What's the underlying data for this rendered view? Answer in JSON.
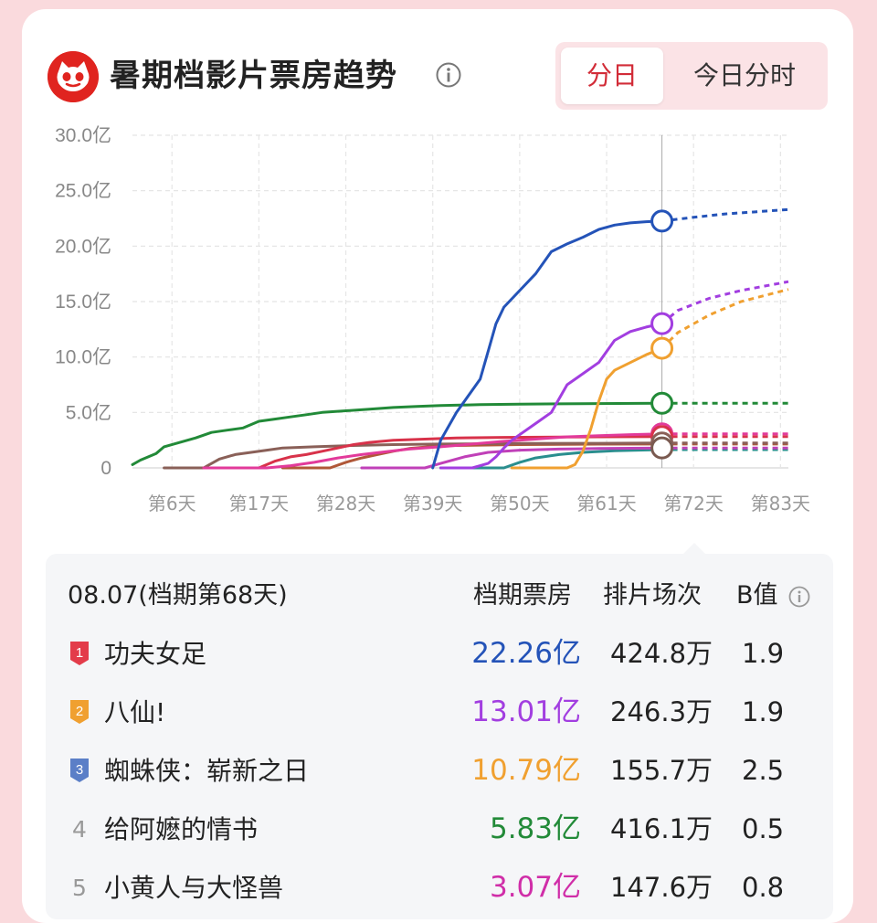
{
  "header": {
    "title": "暑期档影片票房趋势",
    "toggle": [
      "分日",
      "今日分时"
    ],
    "active_toggle": "分日"
  },
  "chart_data": {
    "type": "line",
    "x_unit": "天",
    "x_tick_labels": [
      "第6天",
      "第17天",
      "第28天",
      "第39天",
      "第50天",
      "第61天",
      "第72天",
      "第83天"
    ],
    "x_ticks": [
      6,
      17,
      28,
      39,
      50,
      61,
      72,
      83
    ],
    "y_tick_labels": [
      "0",
      "5.0亿",
      "10.0亿",
      "15.0亿",
      "20.0亿",
      "25.0亿",
      "30.0亿"
    ],
    "ylim": [
      0,
      30
    ],
    "xlim": [
      1,
      84
    ],
    "current_day": 68,
    "grid": true,
    "series": [
      {
        "color": "#2453b8",
        "actual": [
          [
            39,
            0
          ],
          [
            40,
            2.5
          ],
          [
            42,
            5
          ],
          [
            45,
            8
          ],
          [
            46,
            10.5
          ],
          [
            47,
            13
          ],
          [
            48,
            14.5
          ],
          [
            50,
            16
          ],
          [
            52,
            17.5
          ],
          [
            54,
            19.5
          ],
          [
            56,
            20.2
          ],
          [
            58,
            20.8
          ],
          [
            60,
            21.5
          ],
          [
            62,
            21.9
          ],
          [
            64,
            22.1
          ],
          [
            66,
            22.2
          ],
          [
            68,
            22.26
          ]
        ],
        "projected": [
          [
            68,
            22.26
          ],
          [
            72,
            22.6
          ],
          [
            76,
            22.9
          ],
          [
            80,
            23.1
          ],
          [
            84,
            23.3
          ]
        ]
      },
      {
        "color": "#a23ee0",
        "actual": [
          [
            40,
            0
          ],
          [
            44,
            0
          ],
          [
            46,
            0.4
          ],
          [
            47,
            1
          ],
          [
            48,
            1.8
          ],
          [
            49,
            2.5
          ],
          [
            52,
            4
          ],
          [
            54,
            5
          ],
          [
            56,
            7.5
          ],
          [
            58,
            8.5
          ],
          [
            60,
            9.5
          ],
          [
            62,
            11.5
          ],
          [
            64,
            12.3
          ],
          [
            66,
            12.7
          ],
          [
            68,
            13.01
          ]
        ],
        "projected": [
          [
            68,
            13.01
          ],
          [
            70,
            14.2
          ],
          [
            74,
            15.3
          ],
          [
            78,
            16
          ],
          [
            84,
            16.8
          ]
        ]
      },
      {
        "color": "#f0a030",
        "actual": [
          [
            49,
            0
          ],
          [
            56,
            0
          ],
          [
            57,
            0.3
          ],
          [
            58,
            1.5
          ],
          [
            59,
            3.5
          ],
          [
            60,
            6
          ],
          [
            61,
            8
          ],
          [
            62,
            8.8
          ],
          [
            64,
            9.5
          ],
          [
            66,
            10.2
          ],
          [
            68,
            10.79
          ]
        ],
        "projected": [
          [
            68,
            10.79
          ],
          [
            70,
            12.2
          ],
          [
            74,
            13.8
          ],
          [
            78,
            15
          ],
          [
            84,
            16.1
          ]
        ]
      },
      {
        "color": "#228a38",
        "actual": [
          [
            1,
            0.3
          ],
          [
            2,
            0.7
          ],
          [
            4,
            1.3
          ],
          [
            5,
            1.9
          ],
          [
            7,
            2.3
          ],
          [
            9,
            2.7
          ],
          [
            11,
            3.2
          ],
          [
            13,
            3.4
          ],
          [
            15,
            3.6
          ],
          [
            17,
            4.2
          ],
          [
            19,
            4.4
          ],
          [
            21,
            4.6
          ],
          [
            23,
            4.8
          ],
          [
            25,
            5.0
          ],
          [
            28,
            5.15
          ],
          [
            31,
            5.3
          ],
          [
            34,
            5.45
          ],
          [
            37,
            5.55
          ],
          [
            40,
            5.62
          ],
          [
            45,
            5.7
          ],
          [
            50,
            5.75
          ],
          [
            55,
            5.78
          ],
          [
            60,
            5.8
          ],
          [
            65,
            5.82
          ],
          [
            68,
            5.83
          ]
        ],
        "projected": [
          [
            68,
            5.83
          ],
          [
            84,
            5.83
          ]
        ]
      },
      {
        "color": "#e23a9a",
        "actual": [
          [
            10,
            0
          ],
          [
            18,
            0
          ],
          [
            21,
            0.2
          ],
          [
            24,
            0.5
          ],
          [
            27,
            0.9
          ],
          [
            30,
            1.2
          ],
          [
            33,
            1.45
          ],
          [
            36,
            1.7
          ],
          [
            40,
            1.9
          ],
          [
            44,
            2.15
          ],
          [
            48,
            2.4
          ],
          [
            52,
            2.6
          ],
          [
            56,
            2.8
          ],
          [
            60,
            2.9
          ],
          [
            64,
            3.0
          ],
          [
            68,
            3.07
          ]
        ],
        "projected": [
          [
            68,
            3.07
          ],
          [
            84,
            3.07
          ]
        ]
      },
      {
        "color": "#d8324a",
        "actual": [
          [
            10,
            0
          ],
          [
            17,
            0
          ],
          [
            19,
            0.6
          ],
          [
            21,
            1.0
          ],
          [
            23,
            1.2
          ],
          [
            25,
            1.5
          ],
          [
            27,
            1.8
          ],
          [
            29,
            2.1
          ],
          [
            31,
            2.3
          ],
          [
            34,
            2.5
          ],
          [
            38,
            2.6
          ],
          [
            42,
            2.7
          ],
          [
            48,
            2.75
          ],
          [
            55,
            2.78
          ],
          [
            60,
            2.8
          ],
          [
            68,
            2.82
          ]
        ],
        "projected": [
          [
            68,
            2.82
          ],
          [
            84,
            2.82
          ]
        ]
      },
      {
        "color": "#8a6058",
        "actual": [
          [
            5,
            0
          ],
          [
            10,
            0
          ],
          [
            12,
            0.8
          ],
          [
            14,
            1.2
          ],
          [
            16,
            1.4
          ],
          [
            18,
            1.6
          ],
          [
            20,
            1.8
          ],
          [
            24,
            1.9
          ],
          [
            28,
            2.0
          ],
          [
            34,
            2.1
          ],
          [
            40,
            2.15
          ],
          [
            50,
            2.2
          ],
          [
            60,
            2.22
          ],
          [
            68,
            2.25
          ]
        ],
        "projected": [
          [
            68,
            2.25
          ],
          [
            84,
            2.25
          ]
        ]
      },
      {
        "color": "#b05838",
        "actual": [
          [
            20,
            0
          ],
          [
            26,
            0
          ],
          [
            28,
            0.5
          ],
          [
            30,
            0.9
          ],
          [
            32,
            1.2
          ],
          [
            34,
            1.5
          ],
          [
            36,
            1.75
          ],
          [
            40,
            2.0
          ],
          [
            45,
            2.05
          ],
          [
            50,
            2.1
          ],
          [
            55,
            2.12
          ],
          [
            60,
            2.14
          ],
          [
            68,
            2.15
          ]
        ],
        "projected": [
          [
            68,
            2.15
          ],
          [
            84,
            2.15
          ]
        ]
      },
      {
        "color": "#c040b8",
        "actual": [
          [
            30,
            0
          ],
          [
            38,
            0
          ],
          [
            40,
            0.4
          ],
          [
            43,
            1.0
          ],
          [
            46,
            1.4
          ],
          [
            50,
            1.6
          ],
          [
            55,
            1.7
          ],
          [
            60,
            1.75
          ],
          [
            68,
            1.8
          ]
        ],
        "projected": [
          [
            68,
            1.8
          ],
          [
            84,
            1.8
          ]
        ]
      },
      {
        "color": "#2a8e8e",
        "actual": [
          [
            40,
            0
          ],
          [
            48,
            0
          ],
          [
            50,
            0.5
          ],
          [
            52,
            0.9
          ],
          [
            55,
            1.2
          ],
          [
            58,
            1.4
          ],
          [
            62,
            1.55
          ],
          [
            68,
            1.65
          ]
        ],
        "projected": [
          [
            68,
            1.65
          ],
          [
            84,
            1.65
          ]
        ]
      }
    ],
    "markers": [
      {
        "value": 22.26,
        "color": "#2453b8"
      },
      {
        "value": 13.01,
        "color": "#a23ee0"
      },
      {
        "value": 10.79,
        "color": "#f0a030"
      },
      {
        "value": 5.83,
        "color": "#228a38"
      },
      {
        "value": 3.07,
        "color": "#e23a9a"
      },
      {
        "value": 2.82,
        "color": "#d8324a"
      },
      {
        "value": 2.25,
        "color": "#8a6058"
      },
      {
        "value": 1.8,
        "color": "#7a5a50"
      }
    ]
  },
  "table": {
    "date_label": "08.07(档期第68天)",
    "col_box": "档期票房",
    "col_shows": "排片场次",
    "col_b": "B值",
    "rows": [
      {
        "rank": "1",
        "badge_color": "#e33c4a",
        "name": "功夫女足",
        "box": "22.26亿",
        "box_color": "#2453b8",
        "shows": "424.8万",
        "b": "1.9"
      },
      {
        "rank": "2",
        "badge_color": "#f0a030",
        "name": "八仙!",
        "box": "13.01亿",
        "box_color": "#a23ee0",
        "shows": "246.3万",
        "b": "1.9"
      },
      {
        "rank": "3",
        "badge_color": "#5b7fc7",
        "name": "蜘蛛侠：崭新之日",
        "box": "10.79亿",
        "box_color": "#f0a030",
        "shows": "155.7万",
        "b": "2.5"
      },
      {
        "rank": "4",
        "name": "给阿嬷的情书",
        "box": "5.83亿",
        "box_color": "#228a38",
        "shows": "416.1万",
        "b": "0.5"
      },
      {
        "rank": "5",
        "name": "小黄人与大怪兽",
        "box": "3.07亿",
        "box_color": "#d02ea8",
        "shows": "147.6万",
        "b": "0.8"
      }
    ]
  }
}
